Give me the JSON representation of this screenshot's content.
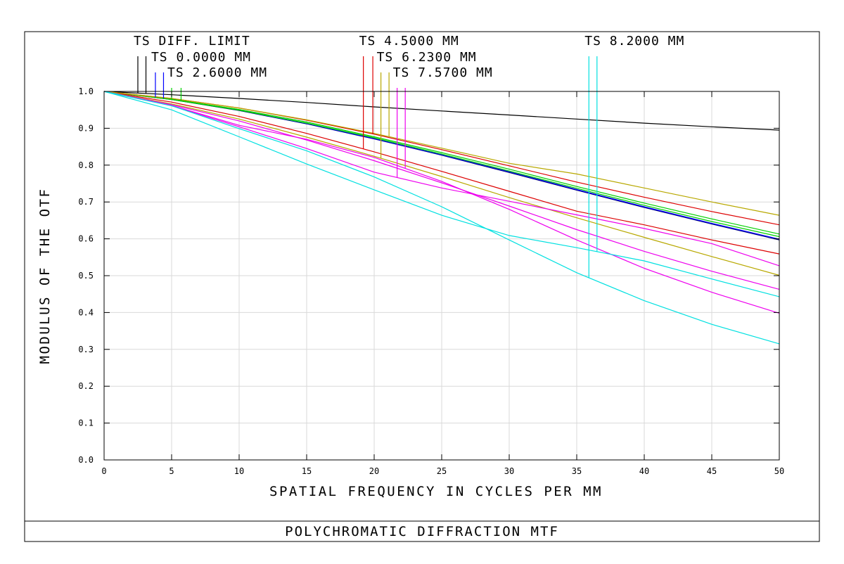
{
  "chart_data": {
    "type": "line",
    "title": "POLYCHROMATIC DIFFRACTION MTF",
    "xlabel": "SPATIAL FREQUENCY IN CYCLES PER MM",
    "ylabel": "MODULUS OF THE OTF",
    "xlim": [
      0,
      50
    ],
    "ylim": [
      0,
      1
    ],
    "x_ticks": [
      "0",
      "5",
      "10",
      "15",
      "20",
      "25",
      "30",
      "35",
      "40",
      "45",
      "50"
    ],
    "y_ticks": [
      "0.0",
      "0.1",
      "0.2",
      "0.3",
      "0.4",
      "0.5",
      "0.6",
      "0.7",
      "0.8",
      "0.9",
      "1.0"
    ],
    "grid": true,
    "x": [
      0,
      5,
      10,
      15,
      20,
      25,
      30,
      35,
      40,
      45,
      50
    ],
    "legend": [
      {
        "label": "TS DIFF. LIMIT",
        "color": "#000000",
        "ticks": [
          2.5,
          3.1
        ]
      },
      {
        "label": "TS 0.0000 MM",
        "color": "#0000ff",
        "ticks": [
          3.8,
          4.4
        ]
      },
      {
        "label": "TS 2.6000 MM",
        "color": "#00d000",
        "ticks": [
          5.0,
          5.7
        ]
      },
      {
        "label": "TS 4.5000 MM",
        "color": "#dd0000",
        "ticks": [
          19.2,
          19.9
        ]
      },
      {
        "label": "TS 6.2300 MM",
        "color": "#b8a800",
        "ticks": [
          20.5,
          21.1
        ]
      },
      {
        "label": "TS 7.5700 MM",
        "color": "#ee00ee",
        "ticks": [
          21.7,
          22.3
        ]
      },
      {
        "label": "TS 8.2000 MM",
        "color": "#00e0e0",
        "ticks": [
          35.9,
          36.5
        ]
      }
    ],
    "series": [
      {
        "color": "#000000",
        "values": [
          1.0,
          0.991,
          0.981,
          0.97,
          0.958,
          0.947,
          0.936,
          0.925,
          0.914,
          0.904,
          0.895
        ]
      },
      {
        "color": "#000080",
        "values": [
          1.0,
          0.978,
          0.948,
          0.912,
          0.871,
          0.827,
          0.78,
          0.732,
          0.685,
          0.64,
          0.597
        ]
      },
      {
        "color": "#0000ff",
        "values": [
          1.0,
          0.979,
          0.949,
          0.913,
          0.872,
          0.828,
          0.782,
          0.734,
          0.687,
          0.642,
          0.599
        ]
      },
      {
        "color": "#00d000",
        "values": [
          1.0,
          0.979,
          0.951,
          0.917,
          0.877,
          0.834,
          0.789,
          0.742,
          0.697,
          0.654,
          0.613
        ]
      },
      {
        "color": "#00d000",
        "values": [
          1.0,
          0.978,
          0.949,
          0.914,
          0.874,
          0.83,
          0.784,
          0.737,
          0.691,
          0.647,
          0.606
        ]
      },
      {
        "color": "#dd0000",
        "values": [
          1.0,
          0.981,
          0.955,
          0.922,
          0.884,
          0.842,
          0.798,
          0.754,
          0.713,
          0.674,
          0.638
        ]
      },
      {
        "color": "#dd0000",
        "values": [
          1.0,
          0.971,
          0.932,
          0.886,
          0.836,
          0.783,
          0.729,
          0.675,
          0.638,
          0.597,
          0.559
        ]
      },
      {
        "color": "#b8a800",
        "values": [
          1.0,
          0.981,
          0.955,
          0.923,
          0.886,
          0.846,
          0.805,
          0.776,
          0.738,
          0.7,
          0.664
        ]
      },
      {
        "color": "#b8a800",
        "values": [
          1.0,
          0.966,
          0.925,
          0.876,
          0.824,
          0.769,
          0.712,
          0.657,
          0.604,
          0.552,
          0.501
        ]
      },
      {
        "color": "#ee00ee",
        "values": [
          1.0,
          0.964,
          0.92,
          0.868,
          0.812,
          0.752,
          0.689,
          0.625,
          0.566,
          0.512,
          0.463
        ]
      },
      {
        "color": "#ee00ee",
        "values": [
          1.0,
          0.961,
          0.904,
          0.845,
          0.781,
          0.738,
          0.702,
          0.665,
          0.628,
          0.587,
          0.527
        ]
      },
      {
        "color": "#ee00ee",
        "values": [
          1.0,
          0.962,
          0.908,
          0.87,
          0.821,
          0.756,
          0.68,
          0.597,
          0.52,
          0.455,
          0.398
        ]
      },
      {
        "color": "#00e0e0",
        "values": [
          1.0,
          0.961,
          0.899,
          0.839,
          0.768,
          0.687,
          0.597,
          0.508,
          0.432,
          0.368,
          0.315
        ]
      },
      {
        "color": "#00e0e0",
        "values": [
          1.0,
          0.95,
          0.877,
          0.803,
          0.733,
          0.664,
          0.609,
          0.576,
          0.54,
          0.491,
          0.443
        ]
      }
    ]
  }
}
